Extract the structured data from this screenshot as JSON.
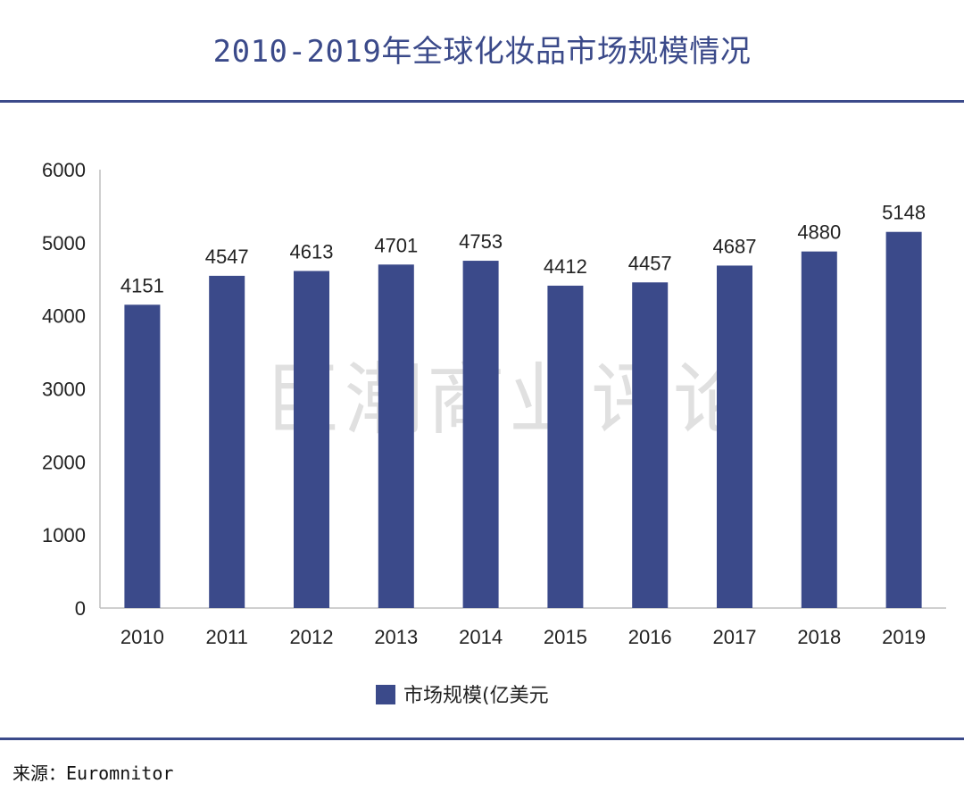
{
  "title": "2010-2019年全球化妆品市场规模情况",
  "watermark": "巨潮商业评论",
  "source": "来源：Euromnitor",
  "colors": {
    "accent": "#3b4a8a",
    "bar": "#3b4a8a"
  },
  "chart_data": {
    "type": "bar",
    "categories": [
      "2010",
      "2011",
      "2012",
      "2013",
      "2014",
      "2015",
      "2016",
      "2017",
      "2018",
      "2019"
    ],
    "series": [
      {
        "name": "市场规模(亿美元",
        "values": [
          4151,
          4547,
          4613,
          4701,
          4753,
          4412,
          4457,
          4687,
          4880,
          5148
        ]
      }
    ],
    "ylim": [
      0,
      6000
    ],
    "yticks": [
      0,
      1000,
      2000,
      3000,
      4000,
      5000,
      6000
    ],
    "grid": false,
    "legend": "bottom",
    "data_labels": true
  }
}
